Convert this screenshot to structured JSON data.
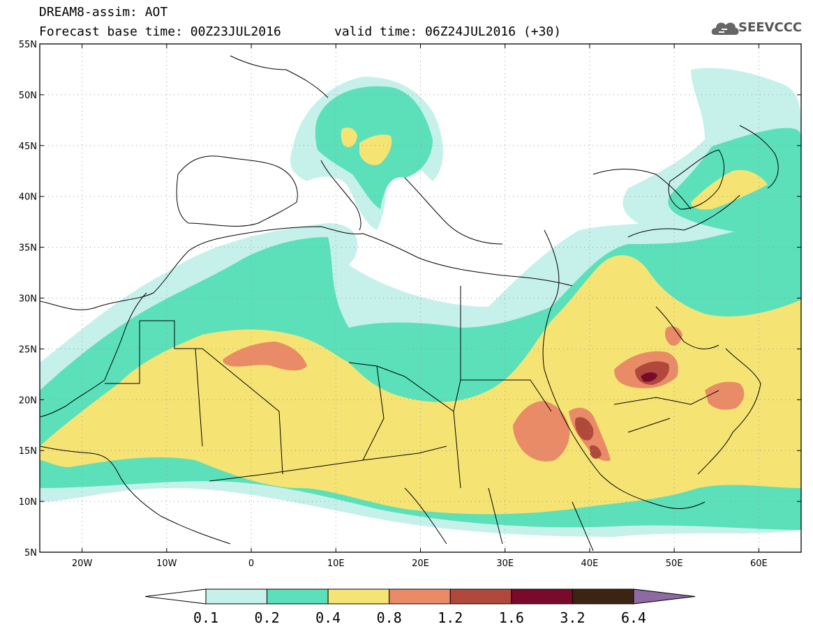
{
  "header": {
    "line1": "DREAM8-assim: AOT",
    "line2_base": "Forecast base time: 00Z23JUL2016",
    "line2_valid": "valid time: 06Z24JUL2016 (+30)"
  },
  "logo": {
    "text": "SEEVCCC",
    "icon": "cloud-icon"
  },
  "map": {
    "lon_range": [
      -25,
      65
    ],
    "lat_range": [
      5,
      55
    ],
    "lat_ticks": [
      {
        "lat": 55,
        "label": "55N"
      },
      {
        "lat": 50,
        "label": "50N"
      },
      {
        "lat": 45,
        "label": "45N"
      },
      {
        "lat": 40,
        "label": "40N"
      },
      {
        "lat": 35,
        "label": "35N"
      },
      {
        "lat": 30,
        "label": "30N"
      },
      {
        "lat": 25,
        "label": "25N"
      },
      {
        "lat": 20,
        "label": "20N"
      },
      {
        "lat": 15,
        "label": "15N"
      },
      {
        "lat": 10,
        "label": "10N"
      },
      {
        "lat": 5,
        "label": "5N"
      }
    ],
    "lon_ticks": [
      {
        "lon": -20,
        "label": "20W"
      },
      {
        "lon": -10,
        "label": "10W"
      },
      {
        "lon": 0,
        "label": "0"
      },
      {
        "lon": 10,
        "label": "10E"
      },
      {
        "lon": 20,
        "label": "20E"
      },
      {
        "lon": 30,
        "label": "30E"
      },
      {
        "lon": 40,
        "label": "40E"
      },
      {
        "lon": 50,
        "label": "50E"
      },
      {
        "lon": 60,
        "label": "60E"
      }
    ],
    "grid": true
  },
  "colorbar": {
    "colors": [
      "#ffffff",
      "#c5f1ea",
      "#5be0ba",
      "#f5e473",
      "#e98b66",
      "#b0493c",
      "#7a0a2c",
      "#3c2412",
      "#8e6aa5"
    ],
    "labels": [
      "0.1",
      "0.2",
      "0.4",
      "0.8",
      "1.2",
      "1.6",
      "3.2",
      "6.4"
    ]
  }
}
